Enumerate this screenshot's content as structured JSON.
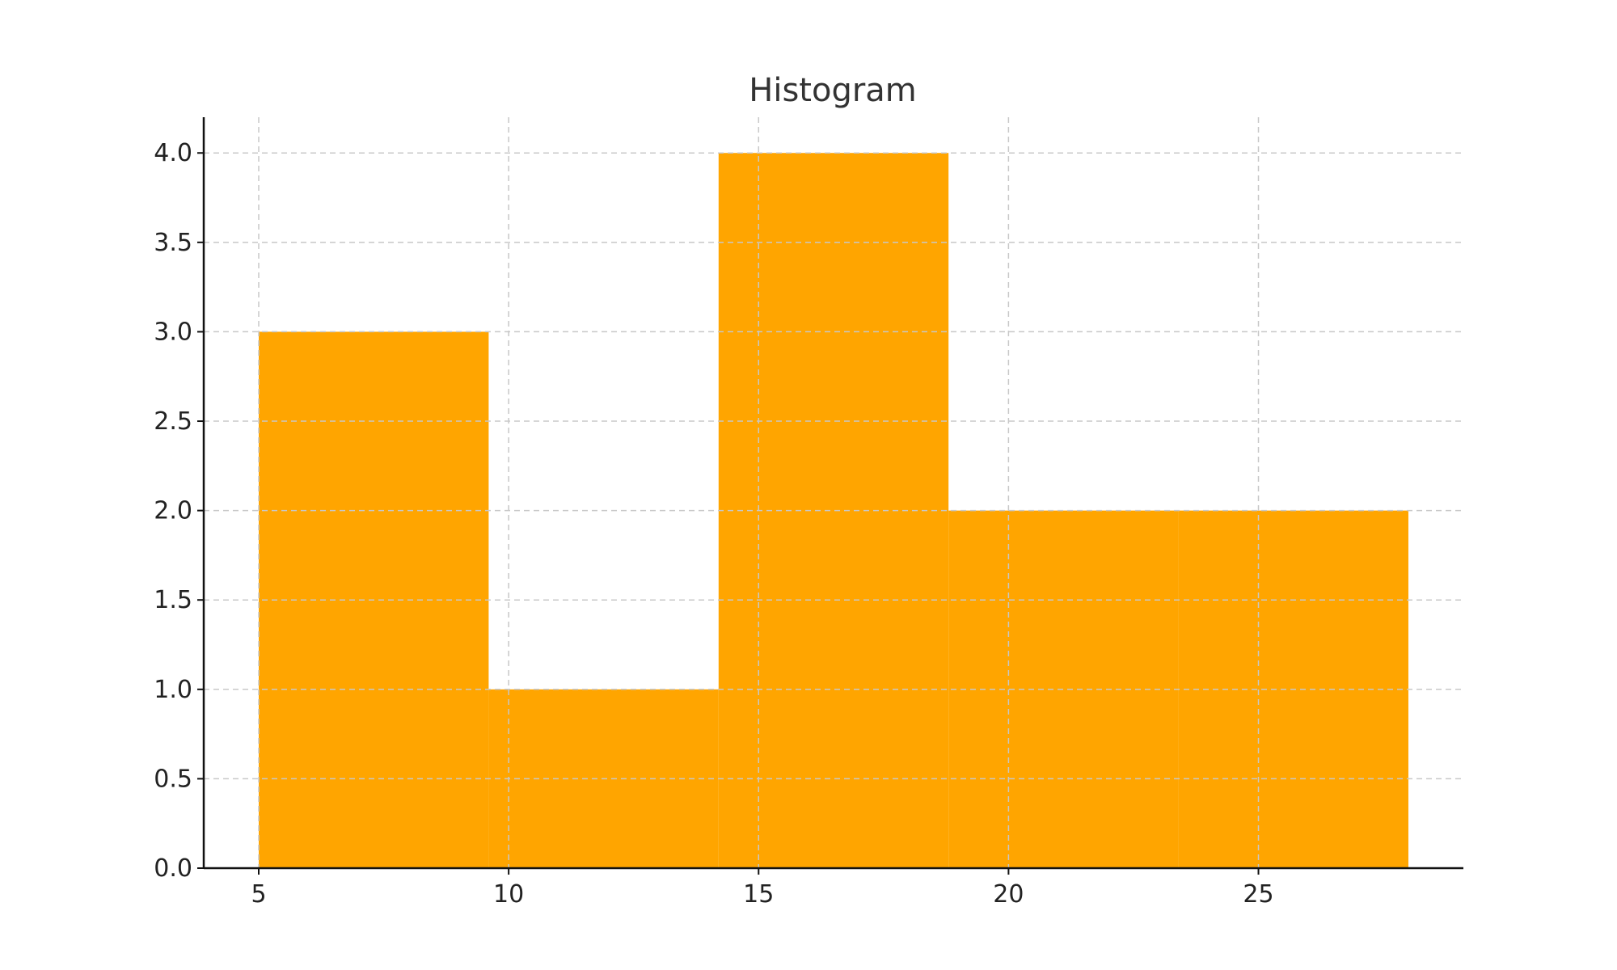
{
  "chart_data": {
    "type": "bar",
    "title": "Histogram",
    "xlabel": "",
    "ylabel": "",
    "bins": [
      {
        "start": 5.0,
        "end": 9.6,
        "count": 3
      },
      {
        "start": 9.6,
        "end": 14.2,
        "count": 1
      },
      {
        "start": 14.2,
        "end": 18.8,
        "count": 4
      },
      {
        "start": 18.8,
        "end": 23.4,
        "count": 2
      },
      {
        "start": 23.4,
        "end": 28.0,
        "count": 2
      }
    ],
    "xlim": [
      3.9,
      29.1
    ],
    "ylim": [
      0,
      4.2
    ],
    "x_ticks": [
      5,
      10,
      15,
      20,
      25
    ],
    "x_tick_labels": [
      "5",
      "10",
      "15",
      "20",
      "25"
    ],
    "y_ticks": [
      0,
      0.5,
      1,
      1.5,
      2,
      2.5,
      3,
      3.5,
      4
    ],
    "y_tick_labels": [
      "0.0",
      "0.5",
      "1.0",
      "1.5",
      "2.0",
      "2.5",
      "3.0",
      "3.5",
      "4.0"
    ],
    "grid": true,
    "bar_color": "#FFA500"
  }
}
